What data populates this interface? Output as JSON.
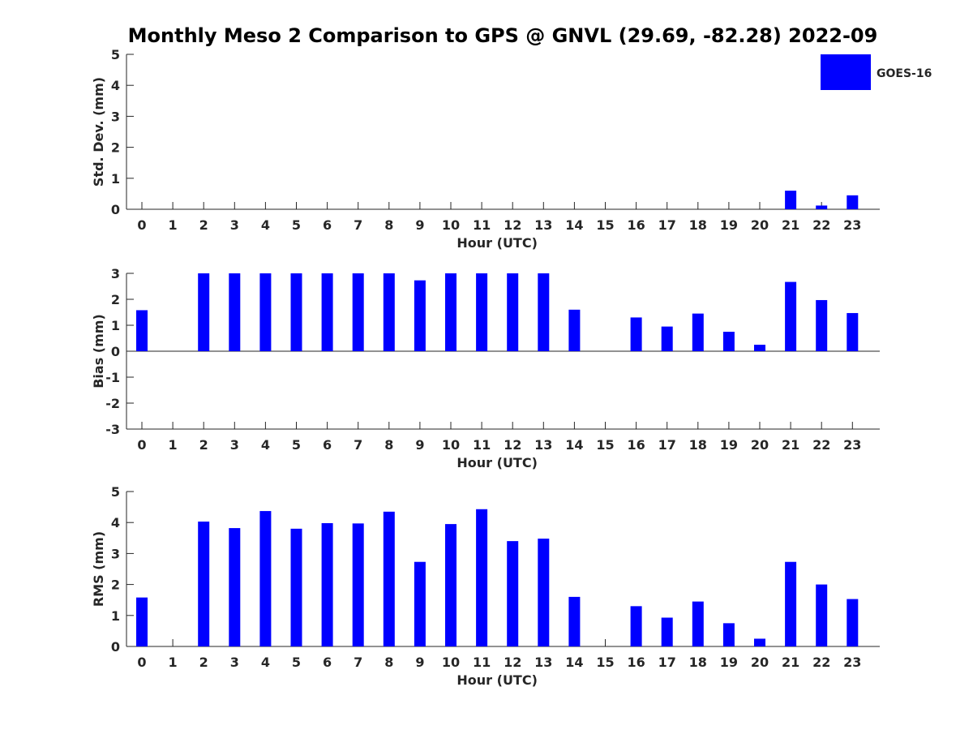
{
  "title": "Monthly Meso 2 Comparison to GPS @ GNVL (29.69, -82.28) 2022-09",
  "legend": {
    "label": "GOES-16",
    "color": "#0000ff",
    "placement": "top-right"
  },
  "chart_data": [
    {
      "type": "bar",
      "xlabel": "Hour (UTC)",
      "ylabel": "Std. Dev. (mm)",
      "ylim": [
        0,
        5
      ],
      "yticks": [
        0,
        1,
        2,
        3,
        4,
        5
      ],
      "categories": [
        "0",
        "1",
        "2",
        "3",
        "4",
        "5",
        "6",
        "7",
        "8",
        "9",
        "10",
        "11",
        "12",
        "13",
        "14",
        "15",
        "16",
        "17",
        "18",
        "19",
        "20",
        "21",
        "22",
        "23"
      ],
      "series": [
        {
          "name": "GOES-16",
          "color": "#0000ff",
          "values": [
            0,
            null,
            0,
            0,
            0,
            0,
            0,
            0,
            0,
            0,
            0,
            0,
            0,
            0,
            0,
            null,
            0,
            0,
            0,
            0,
            0,
            0.6,
            0.12,
            0.45
          ]
        }
      ]
    },
    {
      "type": "bar",
      "xlabel": "Hour (UTC)",
      "ylabel": "Bias (mm)",
      "ylim": [
        -3,
        3
      ],
      "yticks": [
        -3,
        -2,
        -1,
        0,
        1,
        2,
        3
      ],
      "categories": [
        "0",
        "1",
        "2",
        "3",
        "4",
        "5",
        "6",
        "7",
        "8",
        "9",
        "10",
        "11",
        "12",
        "13",
        "14",
        "15",
        "16",
        "17",
        "18",
        "19",
        "20",
        "21",
        "22",
        "23"
      ],
      "series": [
        {
          "name": "GOES-16",
          "color": "#0000ff",
          "values": [
            1.58,
            null,
            3,
            3,
            3,
            3,
            3,
            3,
            3,
            2.73,
            3,
            3,
            3,
            3,
            1.6,
            null,
            1.3,
            0.95,
            1.45,
            0.75,
            0.25,
            2.67,
            1.97,
            1.47
          ]
        }
      ]
    },
    {
      "type": "bar",
      "xlabel": "Hour (UTC)",
      "ylabel": "RMS (mm)",
      "ylim": [
        0,
        5
      ],
      "yticks": [
        0,
        1,
        2,
        3,
        4,
        5
      ],
      "categories": [
        "0",
        "1",
        "2",
        "3",
        "4",
        "5",
        "6",
        "7",
        "8",
        "9",
        "10",
        "11",
        "12",
        "13",
        "14",
        "15",
        "16",
        "17",
        "18",
        "19",
        "20",
        "21",
        "22",
        "23"
      ],
      "series": [
        {
          "name": "GOES-16",
          "color": "#0000ff",
          "values": [
            1.58,
            null,
            4.03,
            3.82,
            4.37,
            3.8,
            3.98,
            3.97,
            4.35,
            2.73,
            3.95,
            4.43,
            3.4,
            3.48,
            1.6,
            null,
            1.3,
            0.93,
            1.45,
            0.75,
            0.25,
            2.73,
            2.0,
            1.53
          ]
        }
      ]
    }
  ]
}
